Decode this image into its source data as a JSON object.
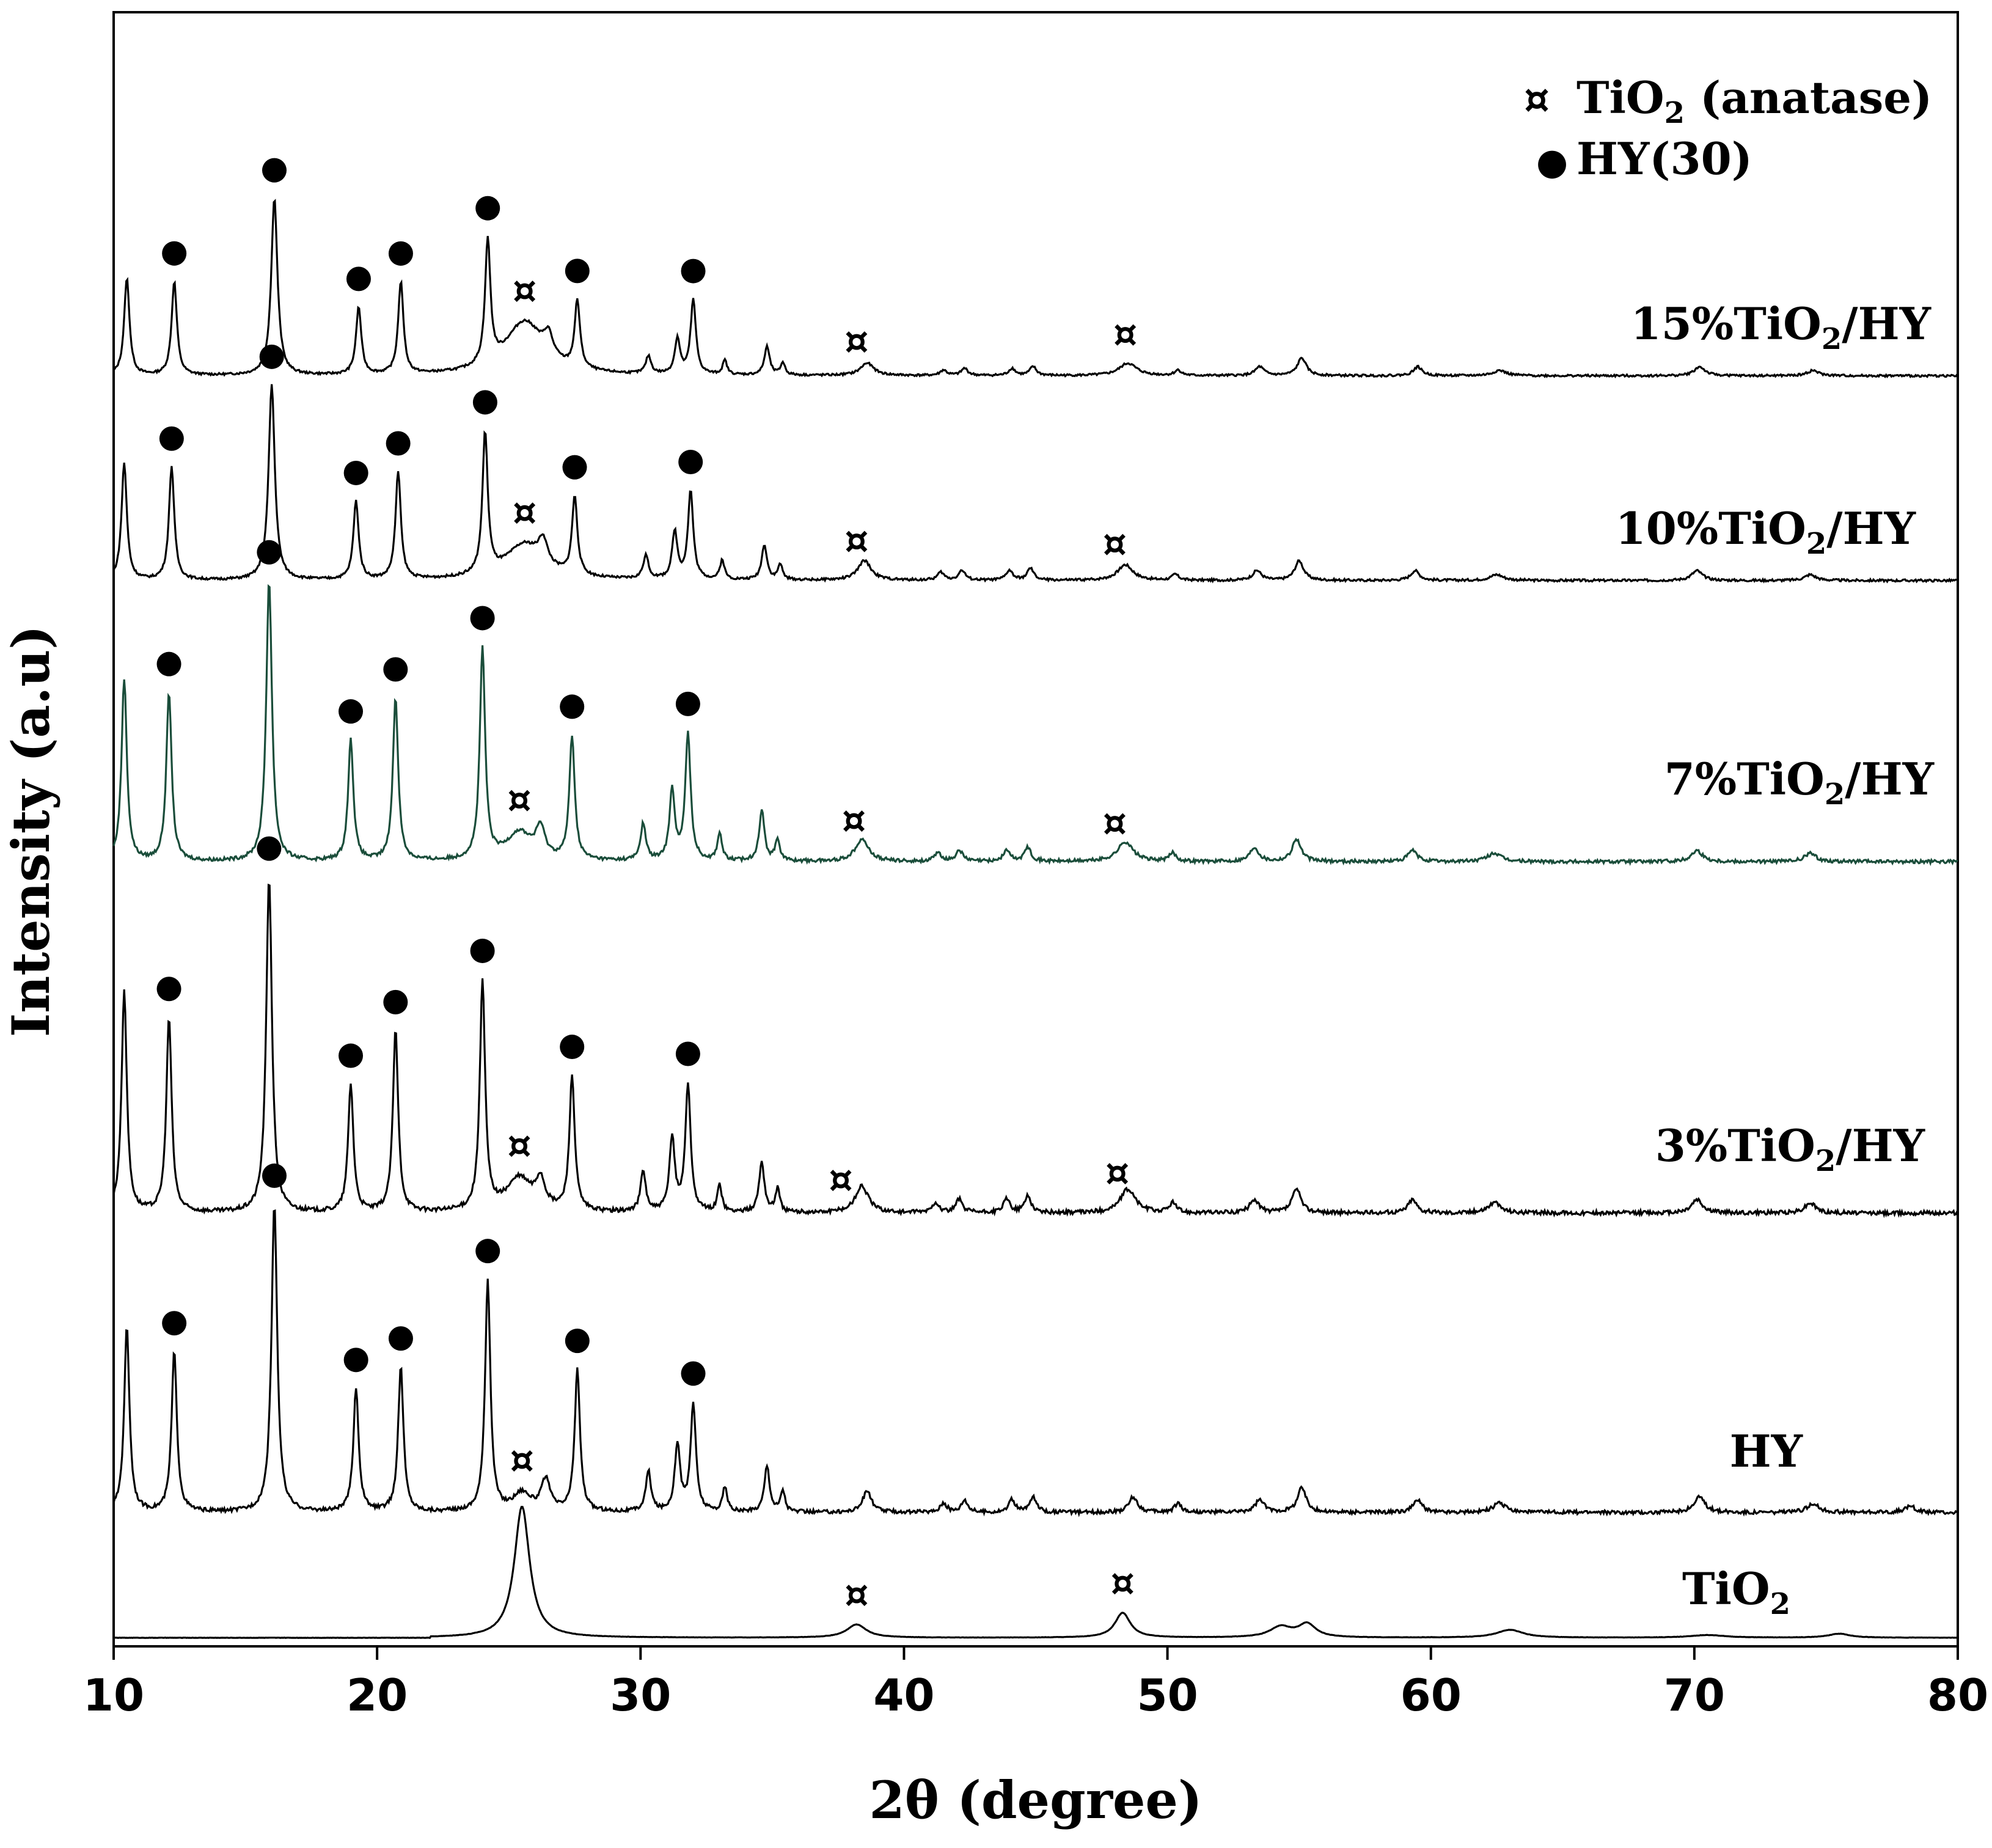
{
  "chart_data": {
    "type": "line",
    "title": "",
    "xlabel": "2θ (degree)",
    "ylabel": "Intensity (a.u)",
    "xlim": [
      10,
      80
    ],
    "x_ticks": [
      10,
      20,
      30,
      40,
      50,
      60,
      70,
      80
    ],
    "y_ticks_shown": false,
    "legend": {
      "placement": "top-right",
      "entries": [
        {
          "marker": "¤",
          "marker_name": "anatase-marker",
          "text": "TiO",
          "sub": "2",
          "suffix": " (anatase)"
        },
        {
          "marker": "●",
          "marker_name": "hy-marker",
          "text": "HY(30)",
          "sub": "",
          "suffix": ""
        }
      ]
    },
    "series": [
      {
        "name": "15%TiO2/HY",
        "label": {
          "pre": "15%TiO",
          "sub": "2",
          "post": "/HY"
        },
        "color": "#000000",
        "baseline": 0.0,
        "peaks": [
          [
            10.5,
            0.55,
            0.12
          ],
          [
            12.3,
            0.53,
            0.12
          ],
          [
            16.1,
            1.0,
            0.14
          ],
          [
            19.3,
            0.38,
            0.12
          ],
          [
            20.9,
            0.52,
            0.12
          ],
          [
            24.2,
            0.7,
            0.12
          ],
          [
            25.6,
            0.3,
            0.9
          ],
          [
            26.5,
            0.12,
            0.2
          ],
          [
            27.6,
            0.38,
            0.12
          ],
          [
            30.3,
            0.1,
            0.12
          ],
          [
            31.4,
            0.2,
            0.12
          ],
          [
            32.0,
            0.42,
            0.12
          ],
          [
            33.2,
            0.08,
            0.1
          ],
          [
            34.8,
            0.16,
            0.12
          ],
          [
            35.4,
            0.07,
            0.1
          ],
          [
            38.6,
            0.07,
            0.3
          ],
          [
            41.5,
            0.03,
            0.15
          ],
          [
            42.3,
            0.04,
            0.15
          ],
          [
            44.1,
            0.04,
            0.15
          ],
          [
            44.9,
            0.05,
            0.15
          ],
          [
            48.5,
            0.07,
            0.4
          ],
          [
            50.4,
            0.03,
            0.15
          ],
          [
            53.5,
            0.05,
            0.2
          ],
          [
            55.1,
            0.1,
            0.2
          ],
          [
            59.5,
            0.05,
            0.2
          ],
          [
            62.6,
            0.03,
            0.3
          ],
          [
            70.2,
            0.05,
            0.25
          ],
          [
            74.5,
            0.03,
            0.25
          ]
        ]
      },
      {
        "name": "10%TiO2/HY",
        "label": {
          "pre": "10%TiO",
          "sub": "2",
          "post": "/HY"
        },
        "color": "#000000",
        "baseline": 0.0,
        "peaks": [
          [
            10.4,
            0.6,
            0.12
          ],
          [
            12.2,
            0.58,
            0.12
          ],
          [
            16.0,
            1.0,
            0.14
          ],
          [
            19.2,
            0.4,
            0.12
          ],
          [
            20.8,
            0.55,
            0.12
          ],
          [
            24.1,
            0.72,
            0.12
          ],
          [
            25.6,
            0.18,
            0.9
          ],
          [
            26.3,
            0.12,
            0.2
          ],
          [
            27.5,
            0.4,
            0.12
          ],
          [
            30.2,
            0.12,
            0.12
          ],
          [
            31.3,
            0.24,
            0.12
          ],
          [
            31.9,
            0.45,
            0.12
          ],
          [
            33.1,
            0.1,
            0.1
          ],
          [
            34.7,
            0.18,
            0.12
          ],
          [
            35.3,
            0.08,
            0.1
          ],
          [
            38.5,
            0.1,
            0.3
          ],
          [
            41.4,
            0.04,
            0.15
          ],
          [
            42.2,
            0.05,
            0.15
          ],
          [
            44.0,
            0.05,
            0.15
          ],
          [
            44.8,
            0.06,
            0.15
          ],
          [
            48.4,
            0.08,
            0.35
          ],
          [
            50.3,
            0.03,
            0.15
          ],
          [
            53.4,
            0.05,
            0.2
          ],
          [
            55.0,
            0.1,
            0.2
          ],
          [
            59.4,
            0.05,
            0.2
          ],
          [
            62.5,
            0.03,
            0.3
          ],
          [
            70.1,
            0.05,
            0.25
          ],
          [
            74.4,
            0.03,
            0.25
          ]
        ]
      },
      {
        "name": "7%TiO2/HY",
        "label": {
          "pre": "7%TiO",
          "sub": "2",
          "post": "/HY"
        },
        "color": "#1a4d3a",
        "baseline": 0.0,
        "peaks": [
          [
            10.4,
            0.65,
            0.12
          ],
          [
            12.1,
            0.6,
            0.12
          ],
          [
            15.9,
            1.0,
            0.13
          ],
          [
            19.0,
            0.43,
            0.12
          ],
          [
            20.7,
            0.58,
            0.12
          ],
          [
            24.0,
            0.75,
            0.12
          ],
          [
            25.4,
            0.1,
            0.6
          ],
          [
            26.2,
            0.1,
            0.2
          ],
          [
            27.4,
            0.44,
            0.12
          ],
          [
            30.1,
            0.13,
            0.12
          ],
          [
            31.2,
            0.25,
            0.12
          ],
          [
            31.8,
            0.45,
            0.12
          ],
          [
            33.0,
            0.1,
            0.1
          ],
          [
            34.6,
            0.18,
            0.12
          ],
          [
            35.2,
            0.08,
            0.1
          ],
          [
            38.4,
            0.08,
            0.3
          ],
          [
            41.3,
            0.03,
            0.15
          ],
          [
            42.1,
            0.04,
            0.15
          ],
          [
            43.9,
            0.04,
            0.15
          ],
          [
            44.7,
            0.05,
            0.15
          ],
          [
            48.4,
            0.07,
            0.35
          ],
          [
            50.2,
            0.03,
            0.15
          ],
          [
            53.3,
            0.05,
            0.2
          ],
          [
            54.9,
            0.08,
            0.2
          ],
          [
            59.3,
            0.04,
            0.2
          ],
          [
            62.4,
            0.03,
            0.3
          ],
          [
            70.1,
            0.04,
            0.25
          ],
          [
            74.4,
            0.03,
            0.25
          ]
        ]
      },
      {
        "name": "3%TiO2/HY",
        "label": {
          "pre": "3%TiO",
          "sub": "2",
          "post": "/HY"
        },
        "color": "#000000",
        "baseline": 0.0,
        "peaks": [
          [
            10.4,
            0.66,
            0.12
          ],
          [
            12.1,
            0.58,
            0.12
          ],
          [
            15.9,
            1.0,
            0.13
          ],
          [
            19.0,
            0.38,
            0.12
          ],
          [
            20.7,
            0.54,
            0.12
          ],
          [
            24.0,
            0.68,
            0.12
          ],
          [
            25.4,
            0.1,
            0.6
          ],
          [
            26.2,
            0.08,
            0.2
          ],
          [
            27.4,
            0.4,
            0.12
          ],
          [
            30.1,
            0.12,
            0.12
          ],
          [
            31.2,
            0.22,
            0.12
          ],
          [
            31.8,
            0.38,
            0.12
          ],
          [
            33.0,
            0.08,
            0.1
          ],
          [
            34.6,
            0.15,
            0.12
          ],
          [
            35.2,
            0.07,
            0.1
          ],
          [
            38.4,
            0.08,
            0.3
          ],
          [
            41.2,
            0.03,
            0.15
          ],
          [
            42.1,
            0.04,
            0.15
          ],
          [
            43.9,
            0.04,
            0.15
          ],
          [
            44.7,
            0.05,
            0.15
          ],
          [
            48.5,
            0.07,
            0.35
          ],
          [
            50.2,
            0.03,
            0.15
          ],
          [
            53.3,
            0.04,
            0.2
          ],
          [
            54.9,
            0.07,
            0.2
          ],
          [
            59.3,
            0.04,
            0.2
          ],
          [
            62.4,
            0.03,
            0.3
          ],
          [
            70.1,
            0.04,
            0.25
          ],
          [
            74.4,
            0.03,
            0.25
          ]
        ]
      },
      {
        "name": "HY",
        "label": {
          "pre": "HY",
          "sub": "",
          "post": ""
        },
        "color": "#000000",
        "baseline": 0.0,
        "peaks": [
          [
            10.5,
            0.6,
            0.12
          ],
          [
            12.3,
            0.52,
            0.12
          ],
          [
            16.1,
            1.0,
            0.13
          ],
          [
            19.2,
            0.4,
            0.12
          ],
          [
            20.9,
            0.47,
            0.12
          ],
          [
            24.2,
            0.75,
            0.12
          ],
          [
            25.5,
            0.06,
            0.4
          ],
          [
            26.4,
            0.1,
            0.2
          ],
          [
            27.6,
            0.46,
            0.12
          ],
          [
            30.3,
            0.13,
            0.12
          ],
          [
            31.4,
            0.22,
            0.12
          ],
          [
            32.0,
            0.35,
            0.12
          ],
          [
            33.2,
            0.08,
            0.1
          ],
          [
            34.8,
            0.15,
            0.12
          ],
          [
            35.4,
            0.07,
            0.1
          ],
          [
            38.6,
            0.07,
            0.2
          ],
          [
            41.5,
            0.03,
            0.15
          ],
          [
            42.3,
            0.04,
            0.15
          ],
          [
            44.1,
            0.04,
            0.15
          ],
          [
            44.9,
            0.05,
            0.15
          ],
          [
            48.7,
            0.05,
            0.2
          ],
          [
            50.4,
            0.03,
            0.15
          ],
          [
            53.5,
            0.04,
            0.2
          ],
          [
            55.1,
            0.08,
            0.2
          ],
          [
            59.5,
            0.04,
            0.2
          ],
          [
            62.6,
            0.03,
            0.3
          ],
          [
            70.2,
            0.05,
            0.25
          ],
          [
            74.5,
            0.03,
            0.25
          ],
          [
            78.2,
            0.02,
            0.25
          ]
        ]
      },
      {
        "name": "TiO2",
        "label": {
          "pre": "TiO",
          "sub": "2",
          "post": ""
        },
        "color": "#000000",
        "baseline": 0.0,
        "peaks": [
          [
            25.5,
            1.0,
            0.35
          ],
          [
            38.2,
            0.1,
            0.45
          ],
          [
            48.3,
            0.19,
            0.35
          ],
          [
            54.3,
            0.08,
            0.5
          ],
          [
            55.3,
            0.1,
            0.4
          ],
          [
            63.0,
            0.06,
            0.6
          ],
          [
            70.5,
            0.02,
            0.8
          ],
          [
            75.5,
            0.03,
            0.5
          ]
        ]
      }
    ],
    "markers": {
      "hy_symbol": "●",
      "anatase_symbol": "¤",
      "per_series": [
        {
          "series": "15%TiO2/HY",
          "hy": [
            12.3,
            16.1,
            19.3,
            20.9,
            24.2,
            27.6,
            32.0
          ],
          "anatase": [
            25.6,
            38.2,
            48.4
          ]
        },
        {
          "series": "10%TiO2/HY",
          "hy": [
            12.2,
            16.0,
            19.2,
            20.8,
            24.1,
            27.5,
            31.9
          ],
          "anatase": [
            25.6,
            38.2,
            48.0
          ]
        },
        {
          "series": "7%TiO2/HY",
          "hy": [
            12.1,
            15.9,
            19.0,
            20.7,
            24.0,
            27.4,
            31.8
          ],
          "anatase": [
            25.4,
            38.1,
            48.0
          ]
        },
        {
          "series": "3%TiO2/HY",
          "hy": [
            12.1,
            15.9,
            19.0,
            20.7,
            24.0,
            27.4,
            31.8
          ],
          "anatase": [
            25.4,
            37.6,
            48.1
          ]
        },
        {
          "series": "HY",
          "hy": [
            12.3,
            16.1,
            19.2,
            20.9,
            24.2,
            27.6,
            32.0
          ],
          "anatase": [
            25.5
          ]
        },
        {
          "series": "TiO2",
          "hy": [],
          "anatase": [
            38.2,
            48.3
          ]
        }
      ]
    }
  }
}
